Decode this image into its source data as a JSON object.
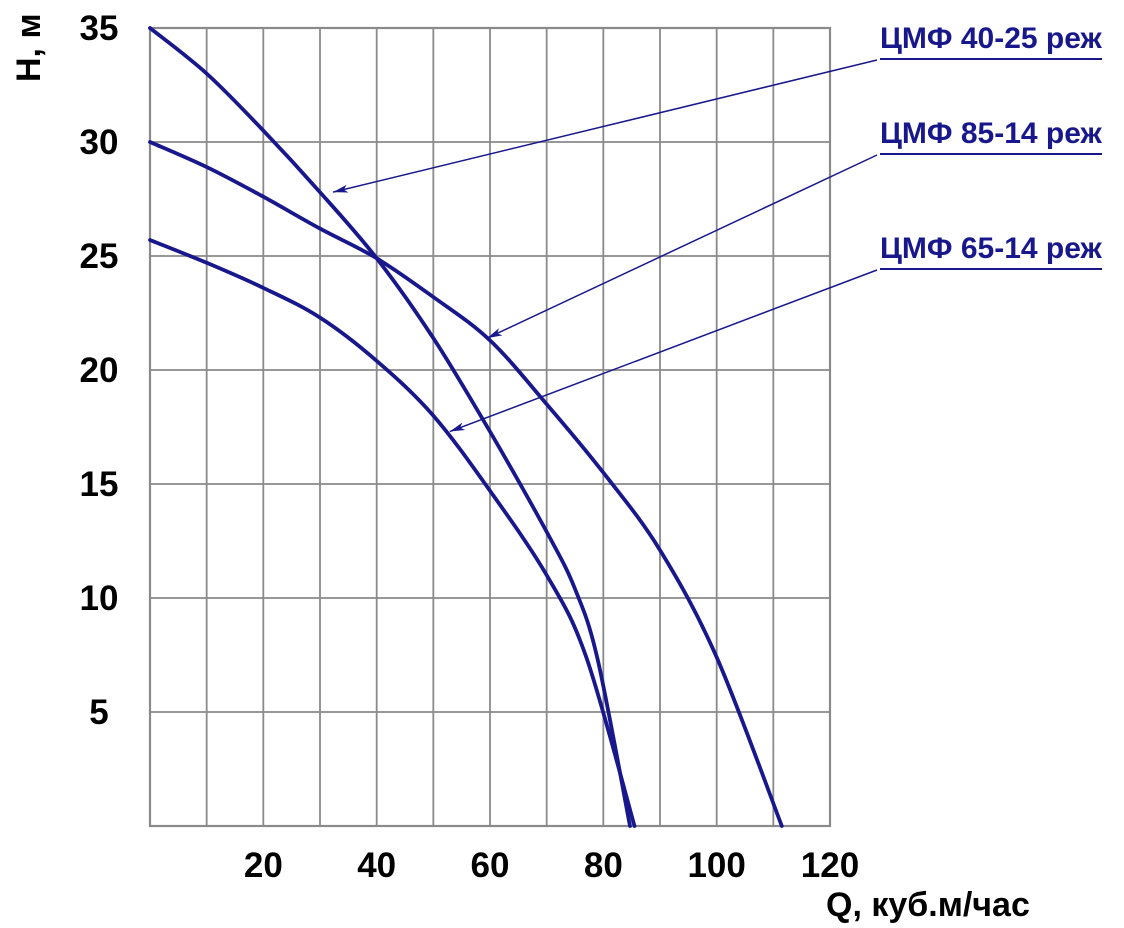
{
  "chart_data": {
    "type": "line",
    "title": "",
    "xlabel": "Q, куб.м/час",
    "ylabel": "Н, м",
    "xlim": [
      0,
      120
    ],
    "ylim": [
      0,
      35
    ],
    "x_ticks": [
      20,
      40,
      60,
      80,
      100,
      120
    ],
    "y_ticks": [
      35,
      30,
      25,
      20,
      15,
      10,
      5
    ],
    "grid": {
      "on": true,
      "x_step": 10,
      "y_step": 5,
      "color": "#8a8a8a"
    },
    "legend_position": "right-outside",
    "colors": {
      "curve": "#18188c",
      "label_text": "#18188c",
      "tick_text": "#000000"
    },
    "series": [
      {
        "name": "ЦМФ 40-25 реж",
        "points": [
          [
            0,
            35
          ],
          [
            10,
            33
          ],
          [
            20,
            30.5
          ],
          [
            30,
            27.8
          ],
          [
            40,
            24.9
          ],
          [
            50,
            21.4
          ],
          [
            60,
            17.3
          ],
          [
            70,
            12.9
          ],
          [
            75,
            10.4
          ],
          [
            79,
            7.3
          ],
          [
            84.7,
            0
          ]
        ]
      },
      {
        "name": "ЦМФ 85-14 реж",
        "points": [
          [
            0,
            30
          ],
          [
            10,
            28.9
          ],
          [
            20,
            27.6
          ],
          [
            30,
            26.2
          ],
          [
            40,
            24.9
          ],
          [
            50,
            23.2
          ],
          [
            60,
            21.3
          ],
          [
            70,
            18.5
          ],
          [
            80,
            15.5
          ],
          [
            90,
            12.1
          ],
          [
            100,
            7.4
          ],
          [
            111.5,
            0
          ]
        ]
      },
      {
        "name": "ЦМФ 65-14 реж",
        "points": [
          [
            0,
            25.7
          ],
          [
            10,
            24.7
          ],
          [
            20,
            23.6
          ],
          [
            30,
            22.3
          ],
          [
            40,
            20.4
          ],
          [
            50,
            18.0
          ],
          [
            60,
            14.7
          ],
          [
            70,
            11.0
          ],
          [
            77,
            7.4
          ],
          [
            85.5,
            0
          ]
        ]
      }
    ],
    "annotations": [
      {
        "label": "ЦМФ 40-25 реж",
        "target_q": 32.3,
        "target_h": 27.8
      },
      {
        "label": "ЦМФ 85-14 реж",
        "target_q": 59.5,
        "target_h": 21.4
      },
      {
        "label": "ЦМФ 65-14 реж",
        "target_q": 52.9,
        "target_h": 17.3
      }
    ]
  }
}
